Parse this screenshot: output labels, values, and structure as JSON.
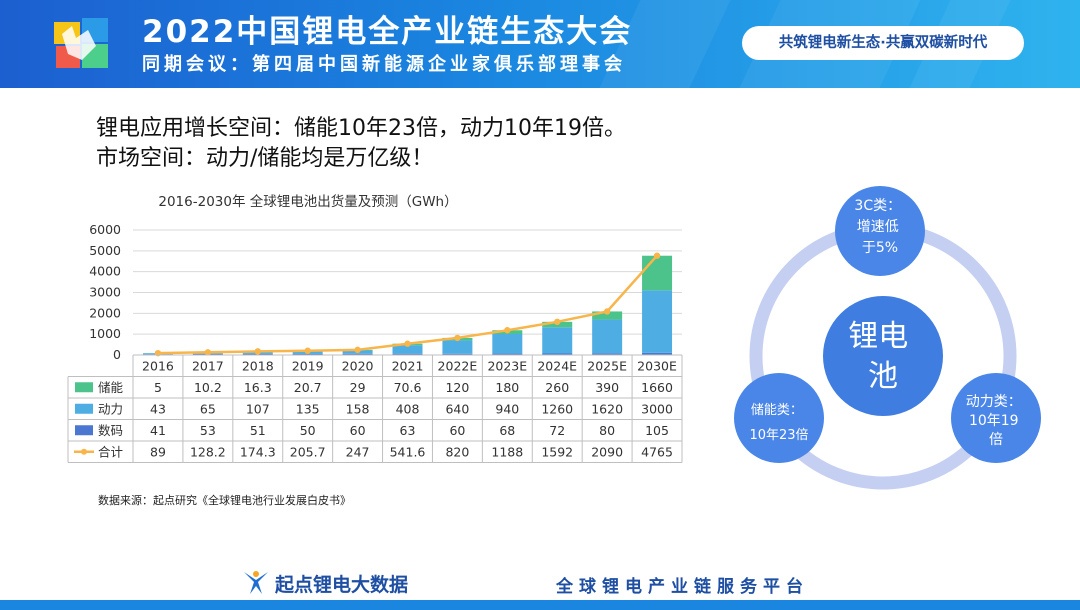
{
  "header": {
    "title": "2022中国锂电全产业链生态大会",
    "subtitle": "同期会议：第四届中国新能源企业家俱乐部理事会",
    "slogan": "共筑锂电新生态·共赢双碳新时代",
    "logo_icon": "conference-logo-icon"
  },
  "headline": {
    "line1": "锂电应用增长空间：储能10年23倍，动力10年19倍。",
    "line2": "市场空间：动力/储能均是万亿级！"
  },
  "chart_data": {
    "type": "bar",
    "stacked": true,
    "title": "2016-2030年 全球锂电池出货量及预测（GWh）",
    "categories": [
      "2016",
      "2017",
      "2018",
      "2019",
      "2020",
      "2021",
      "2022E",
      "2023E",
      "2024E",
      "2025E",
      "2030E"
    ],
    "ylim": [
      0,
      6000
    ],
    "yticks": [
      0,
      1000,
      2000,
      3000,
      4000,
      5000,
      6000
    ],
    "grid": true,
    "series": [
      {
        "name": "储能",
        "kind": "bar",
        "color": "#4cc38a",
        "labels": [
          "5",
          "10.2",
          "16.3",
          "20.7",
          "29",
          "70.6",
          "120",
          "180",
          "260",
          "390",
          "1660"
        ],
        "values": [
          5,
          10.2,
          16.3,
          20.7,
          29,
          70.6,
          120,
          180,
          260,
          390,
          1660
        ]
      },
      {
        "name": "动力",
        "kind": "bar",
        "color": "#4eaee4",
        "labels": [
          "43",
          "65",
          "107",
          "135",
          "158",
          "408",
          "640",
          "940",
          "1260",
          "1620",
          "3000"
        ],
        "values": [
          43,
          65,
          107,
          135,
          158,
          408,
          640,
          940,
          1260,
          1620,
          3000
        ]
      },
      {
        "name": "数码",
        "kind": "bar",
        "color": "#4b77d1",
        "labels": [
          "41",
          "53",
          "51",
          "50",
          "60",
          "63",
          "60",
          "68",
          "72",
          "80",
          "105"
        ],
        "values": [
          41,
          53,
          51,
          50,
          60,
          63,
          60,
          68,
          72,
          80,
          105
        ]
      },
      {
        "name": "合计",
        "kind": "line",
        "color": "#f7b54a",
        "labels": [
          "89",
          "128.2",
          "174.3",
          "205.7",
          "247",
          "541.6",
          "820",
          "1188",
          "1592",
          "2090",
          "4765"
        ],
        "values": [
          89,
          128.2,
          174.3,
          205.7,
          247,
          541.6,
          820,
          1188,
          1592,
          2090,
          4765
        ]
      }
    ]
  },
  "source_note": "数据来源：起点研究《全球锂电池行业发展白皮书》",
  "venn": {
    "center": [
      "锂电",
      "池"
    ],
    "top": [
      "3C类：",
      "增速低",
      "于5%"
    ],
    "left": [
      "储能类：",
      "10年23倍"
    ],
    "right": [
      "动力类：",
      "10年19",
      "倍"
    ],
    "colors": {
      "ring": "#c5cff2",
      "center": "#3f7ee0",
      "top": "#4a86e8",
      "left": "#4a86e8",
      "right": "#4a86e8"
    }
  },
  "footer": {
    "brand": "起点锂电大数据",
    "brand_icon": "brand-logo-icon",
    "platform": "全球锂电产业链服务平台"
  }
}
